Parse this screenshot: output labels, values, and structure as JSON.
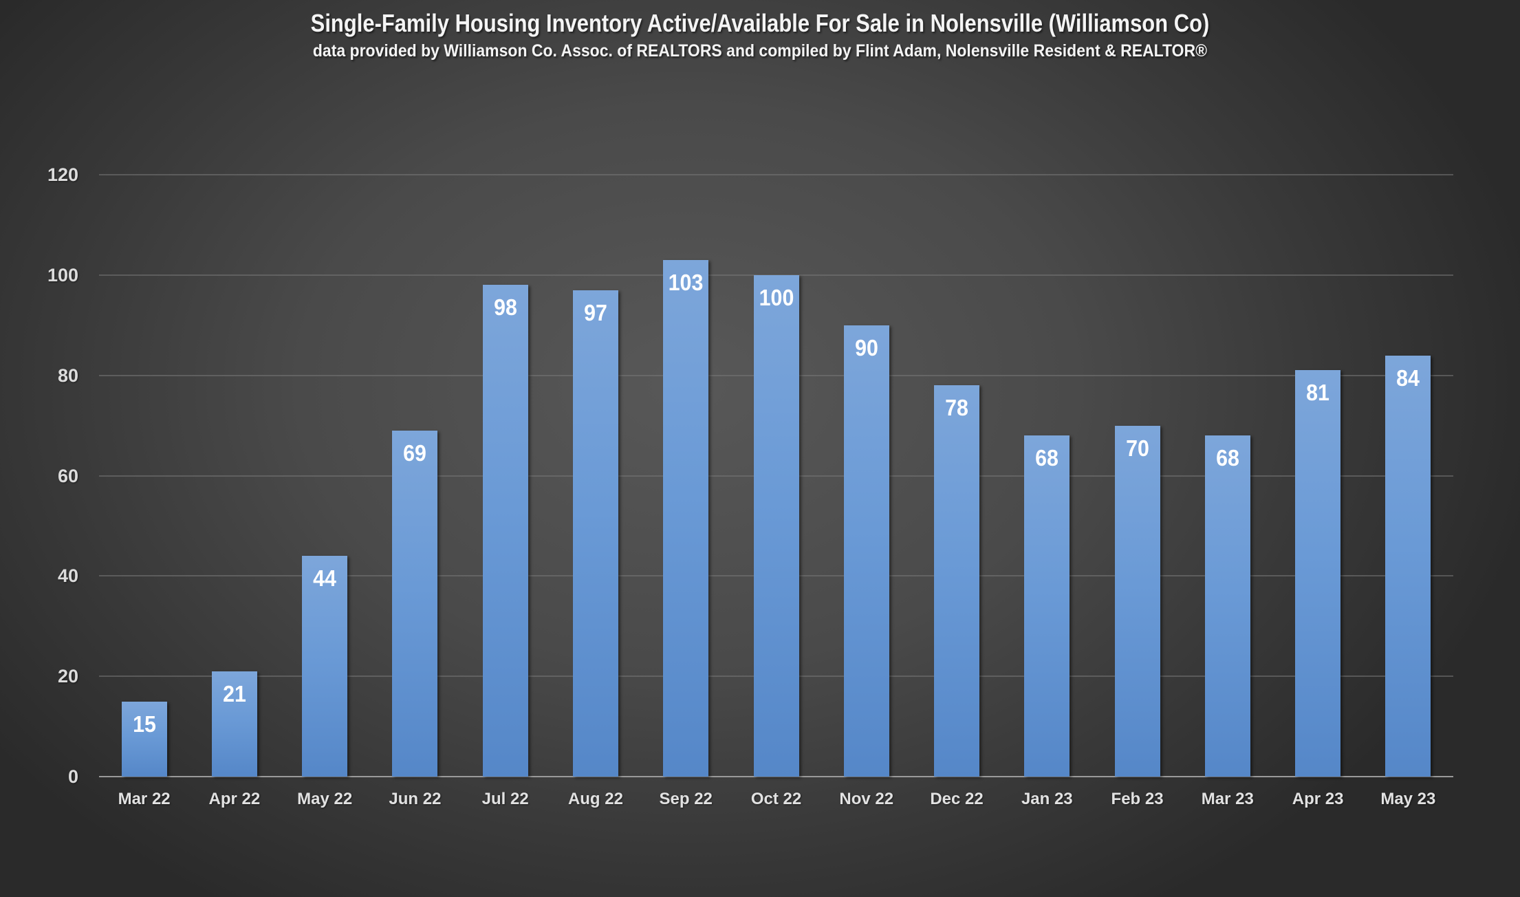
{
  "header": {
    "title": "Single-Family Housing Inventory Active/Available For Sale in Nolensville (Williamson Co)",
    "subtitle": "data provided by Williamson Co. Assoc. of REALTORS  and compiled by Flint Adam, Nolensville Resident & REALTOR®"
  },
  "colors": {
    "bar_top": "#7da6da",
    "bar_bottom": "#5587c8",
    "background_center": "#585858",
    "background_edge": "#2a2a2a",
    "text": "#f4f4f4"
  },
  "chart_data": {
    "type": "bar",
    "title": "Single-Family Housing Inventory Active/Available For Sale in Nolensville (Williamson Co)",
    "subtitle": "data provided by Williamson Co. Assoc. of REALTORS  and compiled by Flint Adam, Nolensville Resident & REALTOR®",
    "xlabel": "",
    "ylabel": "",
    "categories": [
      "Mar 22",
      "Apr 22",
      "May 22",
      "Jun 22",
      "Jul 22",
      "Aug 22",
      "Sep 22",
      "Oct 22",
      "Nov 22",
      "Dec 22",
      "Jan 23",
      "Feb 23",
      "Mar 23",
      "Apr 23",
      "May 23"
    ],
    "values": [
      15,
      21,
      44,
      69,
      98,
      97,
      103,
      100,
      90,
      78,
      68,
      70,
      68,
      81,
      84
    ],
    "ylim": [
      0,
      120
    ],
    "yticks": [
      0,
      20,
      40,
      60,
      80,
      100,
      120
    ],
    "grid": true,
    "data_labels": true,
    "legend": null
  }
}
